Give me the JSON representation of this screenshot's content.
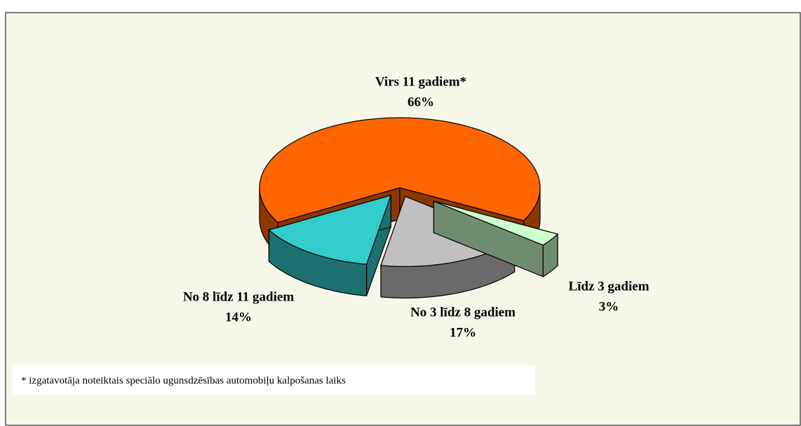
{
  "chart_data": {
    "type": "pie3d",
    "categories": [
      "Virs 11 gadiem*",
      "No 8 līdz 11 gadiem",
      "No 3 līdz 8 gadiem",
      "Līdz 3 gadiem"
    ],
    "values": [
      66,
      14,
      17,
      3
    ],
    "value_labels": [
      "66%",
      "14%",
      "17%",
      "3%"
    ],
    "colors": [
      "#ff6600",
      "#33cccc",
      "#c0c0c0",
      "#ccffcc"
    ],
    "footnote": "* izgatavotāja noteiktais speciālo ugunsdzēsības automobiļu kalpošanas laiks"
  }
}
